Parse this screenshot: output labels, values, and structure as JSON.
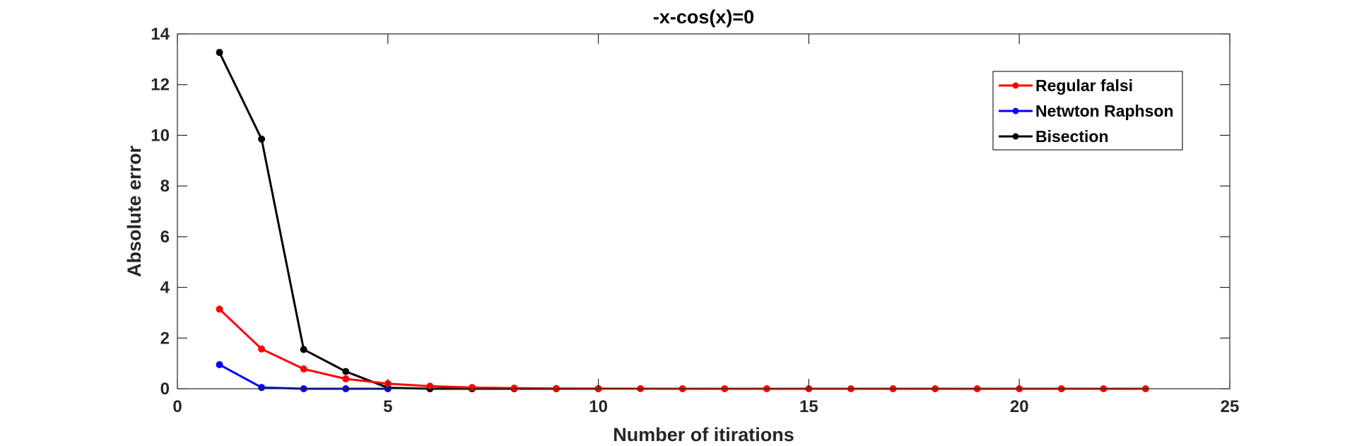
{
  "chart_data": {
    "type": "line",
    "title": "-x-cos(x)=0",
    "xlabel": "Number of itirations",
    "ylabel": "Absolute error",
    "xlim": [
      0,
      25
    ],
    "ylim": [
      0,
      14
    ],
    "xticks": [
      0,
      5,
      10,
      15,
      20,
      25
    ],
    "yticks": [
      0,
      2,
      4,
      6,
      8,
      10,
      12,
      14
    ],
    "grid": false,
    "legend_position": "top-right",
    "series": [
      {
        "name": "Regular falsi",
        "color": "#ff0000",
        "x": [
          1,
          2,
          3,
          4,
          5,
          6,
          7,
          8,
          9,
          10,
          11,
          12,
          13,
          14,
          15,
          16,
          17,
          18,
          19,
          20,
          21,
          22,
          23
        ],
        "y": [
          3.14,
          1.57,
          0.78,
          0.39,
          0.2,
          0.1,
          0.05,
          0.025,
          0.012,
          0.006,
          0.003,
          0.0015,
          0.0008,
          0.0004,
          0.0002,
          0.0001,
          5e-05,
          2e-05,
          1e-05,
          5e-06,
          2e-06,
          1e-06,
          5e-07
        ]
      },
      {
        "name": "Netwton Raphson",
        "color": "#0000ff",
        "x": [
          1,
          2,
          3,
          4,
          5
        ],
        "y": [
          0.95,
          0.05,
          0.0,
          0.0,
          0.0
        ]
      },
      {
        "name": "Bisection",
        "color": "#000000",
        "x": [
          1,
          2,
          3,
          4,
          5,
          6,
          7,
          8,
          9,
          10
        ],
        "y": [
          13.27,
          9.85,
          1.55,
          0.68,
          0.04,
          0.0,
          0.0,
          0.0,
          0.0,
          0.0
        ]
      }
    ]
  }
}
